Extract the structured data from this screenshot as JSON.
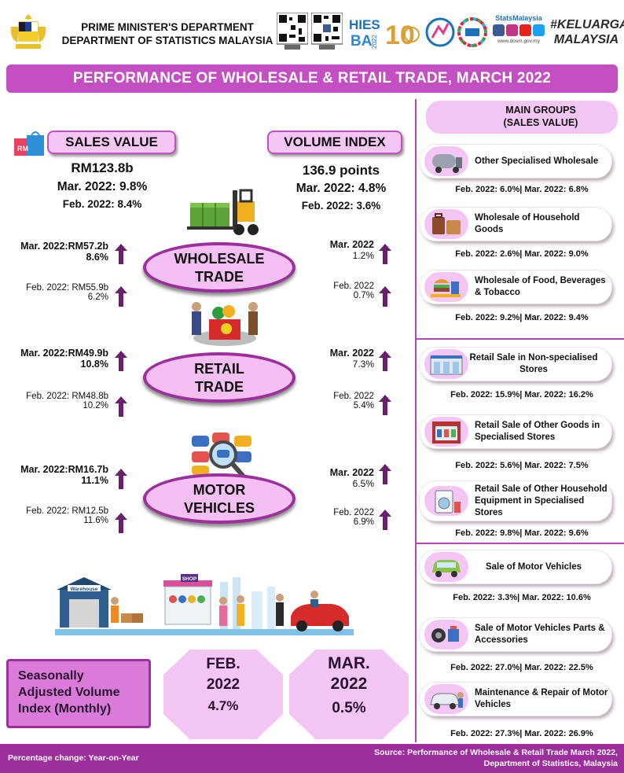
{
  "header": {
    "dept_line1": "PRIME MINISTER'S DEPARTMENT",
    "dept_line2": "DEPARTMENT OF STATISTICS MALAYSIA",
    "logos": {
      "hies_top": "HIES",
      "hies_bottom": "BA",
      "hies_year": "2022",
      "tenth": "10",
      "stats_title": "StatsMalaysia",
      "stats_url": "www.dosm.gov.my",
      "keluarga_1": "#KELUARGA",
      "keluarga_2": "MALAYSIA"
    },
    "title": "PERFORMANCE OF WHOLESALE & RETAIL TRADE, MARCH 2022"
  },
  "sales": {
    "heading": "SALES VALUE",
    "total": "RM123.8b",
    "mar": "Mar. 2022: 9.8%",
    "feb": "Feb. 2022: 8.4%"
  },
  "volume": {
    "heading": "VOLUME INDEX",
    "total": "136.9 points",
    "mar": "Mar. 2022: 4.8%",
    "feb": "Feb. 2022: 3.6%"
  },
  "sectors": [
    {
      "name_line1": "WHOLESALE",
      "name_line2": "TRADE",
      "sales_mar": "Mar. 2022:RM57.2b",
      "sales_mar_pct": "8.6%",
      "sales_feb": "Feb. 2022: RM55.9b",
      "sales_feb_pct": "6.2%",
      "vol_mar": "Mar. 2022",
      "vol_mar_pct": "1.2%",
      "vol_feb": "Feb. 2022",
      "vol_feb_pct": "0.7%"
    },
    {
      "name_line1": "RETAIL",
      "name_line2": "TRADE",
      "sales_mar": "Mar. 2022:RM49.9b",
      "sales_mar_pct": "10.8%",
      "sales_feb": "Feb. 2022: RM48.8b",
      "sales_feb_pct": "10.2%",
      "vol_mar": "Mar. 2022",
      "vol_mar_pct": "7.3%",
      "vol_feb": "Feb. 2022",
      "vol_feb_pct": "5.4%"
    },
    {
      "name_line1": "MOTOR",
      "name_line2": "VEHICLES",
      "sales_mar": "Mar. 2022:RM16.7b",
      "sales_mar_pct": "11.1%",
      "sales_feb": "Feb. 2022: RM12.5b",
      "sales_feb_pct": "11.6%",
      "vol_mar": "Mar. 2022",
      "vol_mar_pct": "6.5%",
      "vol_feb": "Feb. 2022",
      "vol_feb_pct": "6.9%"
    }
  ],
  "illustration": {
    "warehouse_sign": "Warehouse",
    "shop_sign": "SHOP"
  },
  "main_groups": {
    "heading_line1": "MAIN GROUPS",
    "heading_line2": "(SALES VALUE)",
    "items": [
      {
        "label": "Other Specialised Wholesale",
        "stats": "Feb. 2022: 6.0%| Mar. 2022: 6.8%"
      },
      {
        "label": "Wholesale of Household Goods",
        "stats": "Feb. 2022: 2.6%| Mar. 2022: 9.0%"
      },
      {
        "label": "Wholesale of Food, Beverages & Tobacco",
        "stats": "Feb. 2022: 9.2%| Mar. 2022: 9.4%"
      },
      {
        "label": "Retail Sale in Non-specialised Stores",
        "stats": "Feb. 2022: 15.9%| Mar. 2022: 16.2%"
      },
      {
        "label": "Retail Sale of Other Goods in Specialised Stores",
        "stats": "Feb. 2022: 5.6%| Mar. 2022: 7.5%"
      },
      {
        "label": "Retail Sale of Other Household Equipment in Specialised Stores",
        "stats": "Feb. 2022: 9.8%| Mar. 2022: 9.6%"
      },
      {
        "label": "Sale of Motor Vehicles",
        "stats": "Feb. 2022: 3.3%| Mar. 2022: 10.6%"
      },
      {
        "label": "Sale of Motor Vehicles Parts & Accessories",
        "stats": "Feb. 2022: 27.0%| Mar. 2022: 22.5%"
      },
      {
        "label": "Maintenance & Repair of Motor Vehicles",
        "stats": "Feb. 2022: 27.3%| Mar. 2022: 26.9%"
      }
    ]
  },
  "seasonal": {
    "label": "Seasonally Adjusted Volume Index (Monthly)",
    "feb_month": "FEB.",
    "feb_year": "2022",
    "feb_value": "4.7%",
    "mar_month": "MAR.",
    "mar_year": "2022",
    "mar_value": "0.5%"
  },
  "footer": {
    "note": "Percentage change: Year-on-Year",
    "source_line1": "Source: Performance of Wholesale & Retail Trade March 2022,",
    "source_line2": "Department of Statistics, Malaysia"
  },
  "colors": {
    "purple_dark": "#9c2f9b",
    "purple_bar": "#c44fc3",
    "pink_light": "#f3c6f3",
    "arrow": "#6a1f6a"
  }
}
